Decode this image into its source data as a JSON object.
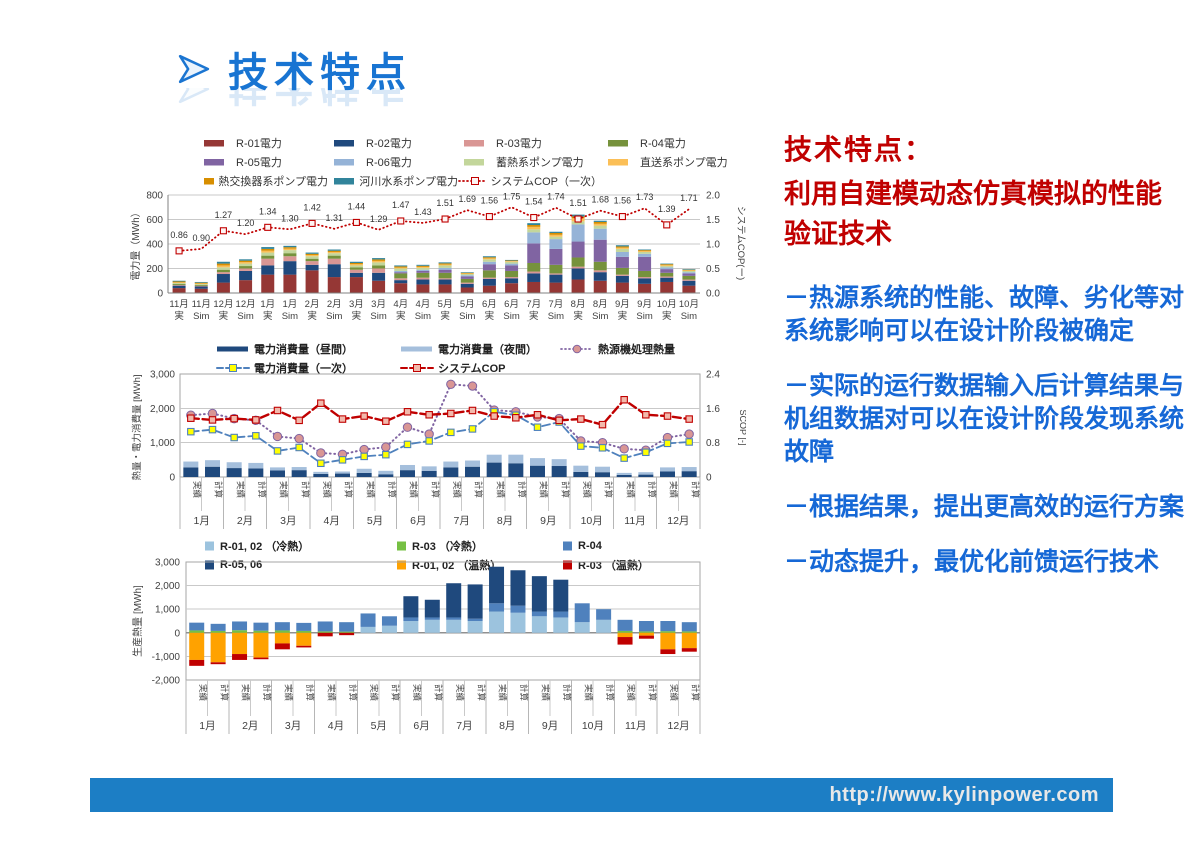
{
  "slide": {
    "title": "技术特点",
    "footer_url": "http://www.kylinpower.com",
    "title_color": "#1874D2",
    "footer_bg": "#1C7EC5"
  },
  "text_panel": {
    "heading": "技术特点：",
    "subheading": "利用自建模动态仿真模拟的性能验证技术",
    "heading_color": "#C00000",
    "bullet_color": "#1668D6",
    "bullets": [
      "－热源系统的性能、故障、劣化等对系统影响可以在设计阶段被确定",
      "－实际的运行数据输入后计算结果与机组数据对可以在设计阶段发现系统故障",
      "－根据结果，提出更高效的运行方案",
      "－动态提升，最优化前馈运行技术"
    ]
  },
  "chart_data": [
    {
      "type": "bar",
      "subtype": "stacked-bars-with-line",
      "ylabel": "電力量（MWh）",
      "y2label": "システムCOP(ー)",
      "ylim": [
        0,
        800
      ],
      "yticks": [
        0,
        200,
        400,
        600,
        800
      ],
      "y2lim": [
        0,
        2.0
      ],
      "y2ticks": [
        0.0,
        0.5,
        1.0,
        1.5,
        2.0
      ],
      "months": [
        "11月",
        "12月",
        "1月",
        "2月",
        "3月",
        "4月",
        "5月",
        "6月",
        "7月",
        "8月",
        "9月",
        "10月"
      ],
      "run_labels": [
        "実",
        "Sim"
      ],
      "grid": true,
      "legend_position": "top",
      "series": [
        {
          "name": "R-01電力",
          "color": "#953735",
          "values": [
            40,
            35,
            85,
            105,
            150,
            150,
            185,
            130,
            130,
            100,
            80,
            70,
            70,
            45,
            60,
            80,
            90,
            85,
            110,
            100,
            85,
            75,
            90,
            60
          ]
        },
        {
          "name": "R-02電力",
          "color": "#1F497D",
          "values": [
            20,
            18,
            70,
            75,
            75,
            110,
            45,
            105,
            35,
            65,
            25,
            40,
            40,
            30,
            55,
            40,
            70,
            65,
            90,
            70,
            55,
            45,
            35,
            40
          ]
        },
        {
          "name": "R-03電力",
          "color": "#D99694",
          "values": [
            5,
            5,
            15,
            20,
            55,
            40,
            30,
            45,
            25,
            35,
            15,
            15,
            10,
            10,
            10,
            10,
            15,
            10,
            15,
            15,
            10,
            10,
            10,
            10
          ]
        },
        {
          "name": "R-04電力",
          "color": "#76923C",
          "values": [
            8,
            7,
            20,
            20,
            25,
            25,
            20,
            25,
            20,
            25,
            40,
            40,
            45,
            30,
            60,
            50,
            70,
            70,
            75,
            70,
            55,
            50,
            30,
            30
          ]
        },
        {
          "name": "R-05電力",
          "color": "#8064A2",
          "values": [
            0,
            0,
            0,
            0,
            0,
            0,
            0,
            0,
            0,
            0,
            10,
            15,
            25,
            20,
            50,
            45,
            160,
            130,
            130,
            180,
            90,
            115,
            30,
            20
          ]
        },
        {
          "name": "R-06電力",
          "color": "#95B3D7",
          "values": [
            0,
            0,
            0,
            0,
            0,
            0,
            0,
            0,
            0,
            0,
            10,
            10,
            15,
            10,
            20,
            15,
            90,
            80,
            140,
            90,
            40,
            25,
            15,
            10
          ]
        },
        {
          "name": "蓄熱系ポンプ電力",
          "color": "#C3D69B",
          "values": [
            8,
            8,
            20,
            20,
            25,
            25,
            20,
            20,
            15,
            25,
            20,
            15,
            20,
            10,
            20,
            15,
            25,
            20,
            25,
            25,
            25,
            15,
            10,
            10
          ]
        },
        {
          "name": "直送系ポンプ電力",
          "color": "#FBBF57",
          "values": [
            6,
            5,
            15,
            12,
            15,
            12,
            10,
            10,
            10,
            12,
            8,
            8,
            8,
            5,
            8,
            5,
            20,
            15,
            25,
            15,
            10,
            8,
            8,
            5
          ]
        },
        {
          "name": "熱交換器系ポンプ電力",
          "color": "#D78E00",
          "values": [
            7,
            6,
            15,
            12,
            15,
            12,
            10,
            10,
            10,
            12,
            9,
            9,
            9,
            5,
            9,
            5,
            15,
            15,
            15,
            15,
            10,
            7,
            7,
            5
          ]
        },
        {
          "name": "河川水系ポンプ電力",
          "color": "#31849B",
          "values": [
            6,
            6,
            15,
            11,
            15,
            11,
            10,
            10,
            10,
            11,
            8,
            8,
            8,
            5,
            8,
            5,
            15,
            10,
            15,
            10,
            10,
            5,
            5,
            5
          ]
        }
      ],
      "cop_line": {
        "name": "システムCOP（一次）",
        "color": "#C00000",
        "style": "dotted",
        "marker": "open-square",
        "value_labels": true,
        "values": [
          0.86,
          0.9,
          1.27,
          1.2,
          1.34,
          1.3,
          1.42,
          1.31,
          1.44,
          1.29,
          1.47,
          1.43,
          1.51,
          1.69,
          1.56,
          1.75,
          1.54,
          1.74,
          1.51,
          1.68,
          1.56,
          1.73,
          1.39,
          1.71
        ]
      }
    },
    {
      "type": "bar",
      "subtype": "stacked-bars-with-lines",
      "ylabel": "熱量・電力消費量 [MWh]",
      "y2label": "SCOP [-]",
      "ylim": [
        0,
        3000
      ],
      "yticks": [
        0,
        1000,
        2000,
        3000
      ],
      "y2lim": [
        0,
        2.4
      ],
      "y2ticks": [
        0,
        0.8,
        1.6,
        2.4
      ],
      "months": [
        "1月",
        "2月",
        "3月",
        "4月",
        "5月",
        "6月",
        "7月",
        "8月",
        "9月",
        "10月",
        "11月",
        "12月"
      ],
      "pair_labels": [
        "実績",
        "計算"
      ],
      "grid": true,
      "legend_position": "top",
      "bar_series": [
        {
          "name": "電力消費量（昼間）",
          "color": "#1F497D",
          "values": [
            280,
            300,
            260,
            250,
            190,
            200,
            90,
            100,
            120,
            80,
            200,
            180,
            280,
            300,
            420,
            400,
            330,
            320,
            150,
            140,
            60,
            70,
            160,
            170
          ]
        },
        {
          "name": "電力消費量（夜間）",
          "color": "#A5BFDC",
          "values": [
            170,
            190,
            170,
            160,
            90,
            90,
            60,
            60,
            120,
            100,
            150,
            130,
            170,
            180,
            230,
            250,
            220,
            200,
            180,
            160,
            60,
            70,
            120,
            120
          ]
        }
      ],
      "line_series": [
        {
          "name": "熱源機処理熱量",
          "axis": "left",
          "color": "#8064A2",
          "style": "dotted",
          "marker": "circle",
          "marker_fill": "#D99694",
          "values": [
            1800,
            1850,
            1700,
            1650,
            1180,
            1120,
            700,
            660,
            800,
            870,
            1450,
            1250,
            2700,
            2650,
            1950,
            1900,
            1750,
            1700,
            1050,
            1000,
            820,
            780,
            1150,
            1250
          ]
        },
        {
          "name": "電力消費量（一次）",
          "axis": "left",
          "color": "#4F81BD",
          "style": "dashed",
          "marker": "square",
          "marker_fill": "#FFFF00",
          "values": [
            1320,
            1380,
            1150,
            1200,
            760,
            860,
            400,
            500,
            600,
            650,
            950,
            1050,
            1300,
            1400,
            1900,
            1800,
            1450,
            1600,
            900,
            850,
            550,
            720,
            980,
            1020
          ]
        },
        {
          "name": "システムCOP",
          "axis": "right",
          "color": "#C00000",
          "style": "dashed",
          "marker": "square",
          "marker_fill": "#F2B9AC",
          "values": [
            1.37,
            1.33,
            1.36,
            1.33,
            1.55,
            1.32,
            1.72,
            1.35,
            1.42,
            1.3,
            1.52,
            1.45,
            1.48,
            1.55,
            1.42,
            1.38,
            1.45,
            1.32,
            1.35,
            1.22,
            1.8,
            1.45,
            1.42,
            1.35
          ]
        }
      ]
    },
    {
      "type": "bar",
      "subtype": "stacked-bars-positive-negative",
      "ylabel": "生産熱量 [MWh]",
      "ylim": [
        -2000,
        3000
      ],
      "yticks": [
        -2000,
        -1000,
        0,
        1000,
        2000,
        3000
      ],
      "months": [
        "1月",
        "2月",
        "3月",
        "4月",
        "5月",
        "6月",
        "7月",
        "8月",
        "9月",
        "10月",
        "11月",
        "12月"
      ],
      "pair_labels": [
        "実績",
        "計算"
      ],
      "grid": true,
      "legend_position": "top",
      "series": [
        {
          "name": "R-01, 02 （冷熱）",
          "color": "#9CC3DE",
          "values": [
            0,
            0,
            0,
            0,
            0,
            0,
            0,
            0,
            250,
            300,
            500,
            550,
            550,
            500,
            900,
            850,
            700,
            650,
            450,
            550,
            0,
            0,
            0,
            0
          ]
        },
        {
          "name": "R-03 （冷熱）",
          "color": "#76C043",
          "values": [
            100,
            80,
            110,
            90,
            100,
            80,
            60,
            50,
            0,
            0,
            0,
            0,
            0,
            0,
            0,
            0,
            0,
            0,
            0,
            0,
            80,
            60,
            70,
            60
          ]
        },
        {
          "name": "R-04",
          "color": "#4F81BD",
          "values": [
            330,
            300,
            370,
            340,
            350,
            340,
            420,
            400,
            570,
            400,
            150,
            100,
            100,
            100,
            350,
            300,
            200,
            250,
            800,
            450,
            470,
            440,
            430,
            390
          ]
        },
        {
          "name": "R-05, 06",
          "color": "#1F497D",
          "values": [
            0,
            0,
            0,
            0,
            0,
            0,
            0,
            0,
            0,
            0,
            900,
            750,
            1450,
            1450,
            1550,
            1500,
            1500,
            1350,
            0,
            0,
            0,
            0,
            0,
            0
          ]
        },
        {
          "name": "R-01, 02 （温熱）",
          "color": "#FFA200",
          "values": [
            -1150,
            -1250,
            -900,
            -1050,
            -450,
            -550,
            0,
            0,
            0,
            0,
            0,
            0,
            0,
            0,
            0,
            0,
            0,
            0,
            0,
            0,
            -180,
            -120,
            -700,
            -650
          ]
        },
        {
          "name": "R-03 （温熱）",
          "color": "#C00000",
          "values": [
            -250,
            -80,
            -250,
            -70,
            -250,
            -70,
            -150,
            -100,
            0,
            0,
            0,
            0,
            0,
            0,
            0,
            0,
            0,
            0,
            0,
            0,
            -320,
            -130,
            -200,
            -150
          ]
        }
      ]
    }
  ]
}
